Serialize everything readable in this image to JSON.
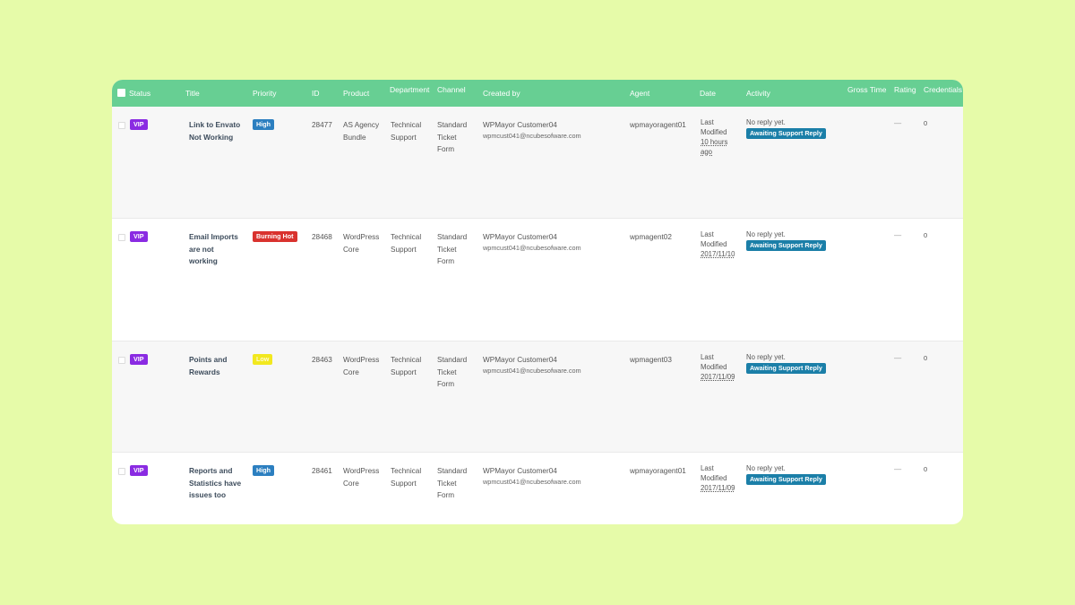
{
  "headers": {
    "status": "Status",
    "title": "Title",
    "priority": "Priority",
    "id": "ID",
    "product": "Product",
    "department": "Department",
    "channel": "Channel",
    "created_by": "Created by",
    "agent": "Agent",
    "date": "Date",
    "activity": "Activity",
    "gross_time": "Gross Time",
    "rating": "Rating",
    "credentials": "Credentials"
  },
  "colors": {
    "background": "#e6fba9",
    "header": "#67cf93",
    "vip": "#8a2be2",
    "high": "#2c7fc0",
    "burning_hot": "#d9322e",
    "low": "#f2e81f",
    "awaiting": "#1b7fa8"
  },
  "tickets": [
    {
      "status": "VIP",
      "title": [
        "Link to Envato",
        "Not Working"
      ],
      "priority": "High",
      "priority_key": "high",
      "id": "28477",
      "product": [
        "AS Agency",
        "Bundle"
      ],
      "department": [
        "Technical",
        "Support"
      ],
      "channel": [
        "Standard",
        "Ticket",
        "Form"
      ],
      "creator_name": "WPMayor Customer04",
      "creator_email": "wpmcust041@ncubesofware.com",
      "agent": "wpmayoragent01",
      "date": [
        "Last",
        "Modified",
        "10 hours",
        "ago"
      ],
      "activity": "No reply yet.",
      "activity_badge": "Awaiting Support Reply",
      "gross_time": "—",
      "rating": "0"
    },
    {
      "status": "VIP",
      "title": [
        "Email Imports",
        "are not",
        "working"
      ],
      "priority": "Burning Hot",
      "priority_key": "burning_hot",
      "id": "28468",
      "product": [
        "WordPress",
        "Core"
      ],
      "department": [
        "Technical",
        "Support"
      ],
      "channel": [
        "Standard",
        "Ticket",
        "Form"
      ],
      "creator_name": "WPMayor Customer04",
      "creator_email": "wpmcust041@ncubesofware.com",
      "agent": "wpmagent02",
      "date": [
        "Last",
        "Modified",
        "2017/11/10"
      ],
      "activity": "No reply yet.",
      "activity_badge": "Awaiting Support Reply",
      "gross_time": "—",
      "rating": "0"
    },
    {
      "status": "VIP",
      "title": [
        "Points and",
        "Rewards"
      ],
      "priority": "Low",
      "priority_key": "low",
      "id": "28463",
      "product": [
        "WordPress",
        "Core"
      ],
      "department": [
        "Technical",
        "Support"
      ],
      "channel": [
        "Standard",
        "Ticket",
        "Form"
      ],
      "creator_name": "WPMayor Customer04",
      "creator_email": "wpmcust041@ncubesofware.com",
      "agent": "wpmagent03",
      "date": [
        "Last",
        "Modified",
        "2017/11/09"
      ],
      "activity": "No reply yet.",
      "activity_badge": "Awaiting Support Reply",
      "gross_time": "—",
      "rating": "0"
    },
    {
      "status": "VIP",
      "title": [
        "Reports and",
        "Statistics have",
        "issues too"
      ],
      "priority": "High",
      "priority_key": "high",
      "id": "28461",
      "product": [
        "WordPress",
        "Core"
      ],
      "department": [
        "Technical",
        "Support"
      ],
      "channel": [
        "Standard",
        "Ticket",
        "Form"
      ],
      "creator_name": "WPMayor Customer04",
      "creator_email": "wpmcust041@ncubesofware.com",
      "agent": "wpmayoragent01",
      "date": [
        "Last",
        "Modified",
        "2017/11/09"
      ],
      "activity": "No reply yet.",
      "activity_badge": "Awaiting Support Reply",
      "gross_time": "—",
      "rating": "0"
    }
  ]
}
